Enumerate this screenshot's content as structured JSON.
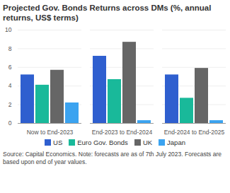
{
  "chart_data": {
    "type": "bar",
    "title": "Projected Gov. Bonds Returns across DMs (%, annual returns, US$ terms)",
    "caption": "Source: Capital Economics. Note: forecasts are as of 7th July 2023. Forecasts are based upon end of year values.",
    "categories": [
      "Now to End-2023",
      "End-2023 to End-2024",
      "End-2024 to End-2025"
    ],
    "series": [
      {
        "name": "US",
        "color": "#2f5fcf",
        "values": [
          5.2,
          7.2,
          5.2
        ]
      },
      {
        "name": "Euro Gov. Bonds",
        "color": "#19b99a",
        "values": [
          4.1,
          4.7,
          2.7
        ]
      },
      {
        "name": "UK",
        "color": "#666666",
        "values": [
          5.7,
          8.7,
          5.9
        ]
      },
      {
        "name": "Japan",
        "color": "#3ba3f0",
        "values": [
          2.2,
          0.3,
          0.3
        ]
      }
    ],
    "ylim": [
      0,
      10
    ],
    "yticks": [
      0,
      2,
      4,
      6,
      8,
      10
    ],
    "grid": true,
    "legend": "bottom"
  }
}
